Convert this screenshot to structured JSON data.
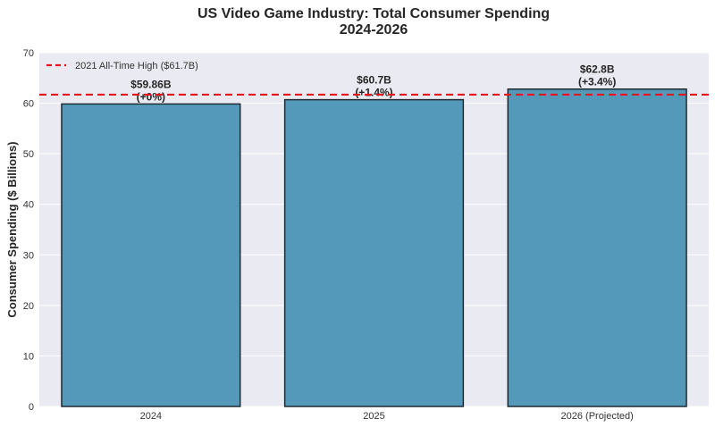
{
  "chart_data": {
    "type": "bar",
    "title": "US Video Game Industry: Total Consumer Spending",
    "subtitle": "2024-2026",
    "xlabel": "",
    "ylabel": "Consumer Spending ($ Billions)",
    "categories": [
      "2024",
      "2025",
      "2026 (Projected)"
    ],
    "values": [
      59.86,
      60.7,
      62.8
    ],
    "value_labels": [
      "$59.86B",
      "$60.7B",
      "$62.8B"
    ],
    "change_labels": [
      "(+0%)",
      "(+1.4%)",
      "(+3.4%)"
    ],
    "ylim": [
      0,
      70
    ],
    "yticks": [
      "0",
      "10",
      "20",
      "30",
      "40",
      "50",
      "60",
      "70"
    ],
    "reference_line": {
      "value": 61.7,
      "label": "2021 All-Time High ($61.7B)",
      "color": "#e8141b",
      "style": "dashed"
    },
    "legend_position": "top-left",
    "grid": true,
    "colors": {
      "bar": "#5499b9",
      "bar_edge": "#1f2a33",
      "plot_bg": "#eaeaf2",
      "grid": "#ffffff"
    }
  }
}
